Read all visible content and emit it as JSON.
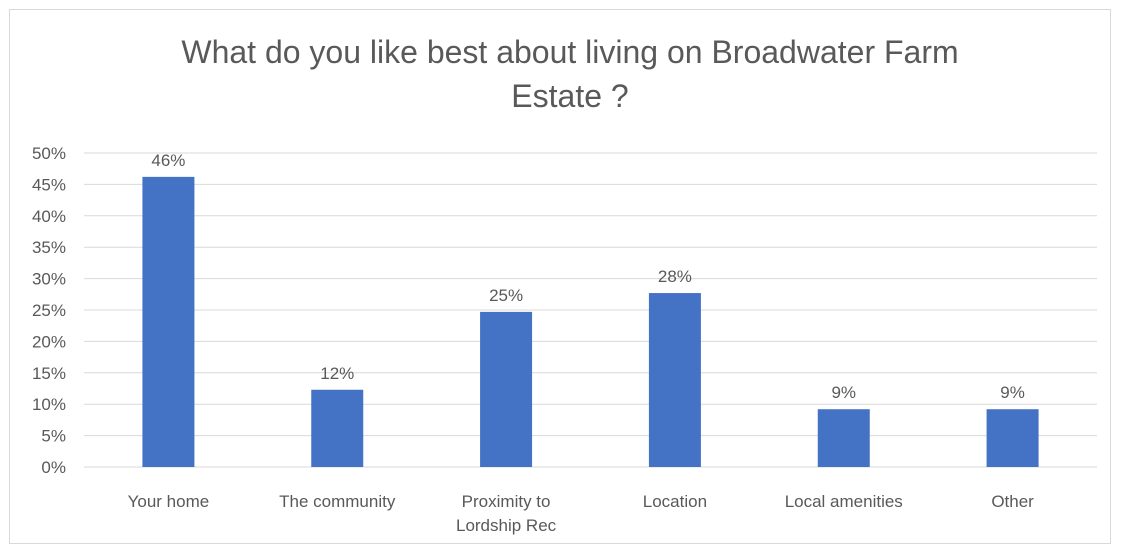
{
  "chart_data": {
    "type": "bar",
    "title_lines": [
      "What do you like best about living on Broadwater Farm",
      "Estate ?"
    ],
    "categories": [
      [
        "Your home"
      ],
      [
        "The community"
      ],
      [
        "Proximity to",
        "Lordship Rec"
      ],
      [
        "Location"
      ],
      [
        "Local amenities"
      ],
      [
        "Other"
      ]
    ],
    "values": [
      46,
      12,
      25,
      28,
      9,
      9
    ],
    "data_labels": [
      "46%",
      "12%",
      "25%",
      "28%",
      "9%",
      "9%"
    ],
    "precise_values": [
      46.2,
      12.3,
      24.7,
      27.7,
      9.2,
      9.2
    ],
    "y_ticks": [
      "0%",
      "5%",
      "10%",
      "15%",
      "20%",
      "25%",
      "30%",
      "35%",
      "40%",
      "45%",
      "50%"
    ],
    "ylim": [
      0,
      50
    ],
    "y_step": 5,
    "grid": true,
    "legend": "none",
    "bar_color": "#4472c4",
    "grid_color": "#d9d9d9",
    "text_color": "#595959"
  }
}
